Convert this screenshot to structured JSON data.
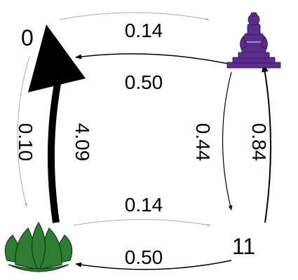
{
  "nodes": {
    "top_left": {
      "label": "0"
    },
    "top_right": {
      "icon": "seated-figure-icon",
      "color": "#5b2d8e"
    },
    "bottom_left": {
      "icon": "lotus-icon",
      "color": "#2e7d32"
    },
    "bottom_right": {
      "label": "11"
    }
  },
  "edges": {
    "tl_to_tr": "0.14",
    "tr_to_tl": "0.50",
    "bl_to_br": "0.14",
    "br_to_bl": "0.50",
    "tl_to_bl": "0.10",
    "bl_to_tl": "4.09",
    "tr_to_br": "0.44",
    "br_to_tr": "0.84"
  }
}
